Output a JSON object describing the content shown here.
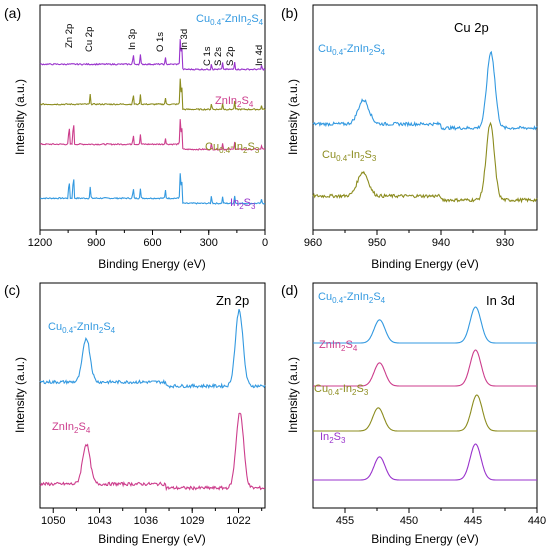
{
  "figure": {
    "panels": [
      {
        "id": "a",
        "panel_label": "(a)",
        "title": "",
        "xlabel": "Binding Energy (eV)",
        "ylabel": "Intensity (a.u.)",
        "x_ticks": [
          "1200",
          "900",
          "600",
          "300",
          "0"
        ],
        "series_labels": [
          {
            "parts": [
              [
                "Cu",
                ""
              ],
              [
                "0.4",
                "sub"
              ],
              [
                "-ZnIn",
                ""
              ],
              [
                "2",
                "sub"
              ],
              [
                "S",
                ""
              ],
              [
                "4",
                "sub"
              ]
            ]
          },
          {
            "parts": [
              [
                "ZnIn",
                ""
              ],
              [
                "2",
                "sub"
              ],
              [
                "S",
                ""
              ],
              [
                "4",
                "sub"
              ]
            ]
          },
          {
            "parts": [
              [
                "Cu",
                ""
              ],
              [
                "0.4",
                "sub"
              ],
              [
                "-In",
                ""
              ],
              [
                "2",
                "sub"
              ],
              [
                "S",
                ""
              ],
              [
                "3",
                "sub"
              ]
            ]
          },
          {
            "parts": [
              [
                "In",
                ""
              ],
              [
                "2",
                "sub"
              ],
              [
                "S",
                ""
              ],
              [
                "3",
                "sub"
              ]
            ]
          }
        ],
        "peak_labels": [
          "Zn 2p",
          "Cu 2p",
          "In 3p",
          "O 1s",
          "In 3d",
          "C 1s",
          "S 2s",
          "S 2p",
          "In 4d"
        ]
      },
      {
        "id": "b",
        "panel_label": "(b)",
        "title": "Cu 2p",
        "xlabel": "Binding Energy (eV)",
        "ylabel": "Intensity (a.u.)",
        "x_ticks": [
          "960",
          "950",
          "940",
          "930"
        ],
        "series_labels": [
          {
            "parts": [
              [
                "Cu",
                ""
              ],
              [
                "0.4",
                "sub"
              ],
              [
                "-ZnIn",
                ""
              ],
              [
                "2",
                "sub"
              ],
              [
                "S",
                ""
              ],
              [
                "4",
                "sub"
              ]
            ]
          },
          {
            "parts": [
              [
                "Cu",
                ""
              ],
              [
                "0.4",
                "sub"
              ],
              [
                "-In",
                ""
              ],
              [
                "2",
                "sub"
              ],
              [
                "S",
                ""
              ],
              [
                "3",
                "sub"
              ]
            ]
          }
        ]
      },
      {
        "id": "c",
        "panel_label": "(c)",
        "title": "Zn 2p",
        "xlabel": "Binding Energy (eV)",
        "ylabel": "Intensity (a.u.)",
        "x_ticks": [
          "1050",
          "1043",
          "1036",
          "1029",
          "1022"
        ],
        "series_labels": [
          {
            "parts": [
              [
                "Cu",
                ""
              ],
              [
                "0.4",
                "sub"
              ],
              [
                "-ZnIn",
                ""
              ],
              [
                "2",
                "sub"
              ],
              [
                "S",
                ""
              ],
              [
                "4",
                "sub"
              ]
            ]
          },
          {
            "parts": [
              [
                "ZnIn",
                ""
              ],
              [
                "2",
                "sub"
              ],
              [
                "S",
                ""
              ],
              [
                "4",
                "sub"
              ]
            ]
          }
        ]
      },
      {
        "id": "d",
        "panel_label": "(d)",
        "title": "In 3d",
        "xlabel": "Binding Energy (eV)",
        "ylabel": "Intensity (a.u.)",
        "x_ticks": [
          "455",
          "450",
          "445",
          "440"
        ],
        "series_labels": [
          {
            "parts": [
              [
                "Cu",
                ""
              ],
              [
                "0.4",
                "sub"
              ],
              [
                "-ZnIn",
                ""
              ],
              [
                "2",
                "sub"
              ],
              [
                "S",
                ""
              ],
              [
                "4",
                "sub"
              ]
            ]
          },
          {
            "parts": [
              [
                "ZnIn",
                ""
              ],
              [
                "2",
                "sub"
              ],
              [
                "S",
                ""
              ],
              [
                "4",
                "sub"
              ]
            ]
          },
          {
            "parts": [
              [
                "Cu",
                ""
              ],
              [
                "0.4",
                "sub"
              ],
              [
                "-In",
                ""
              ],
              [
                "2",
                "sub"
              ],
              [
                "S",
                ""
              ],
              [
                "3",
                "sub"
              ]
            ]
          },
          {
            "parts": [
              [
                "In",
                ""
              ],
              [
                "2",
                "sub"
              ],
              [
                "S",
                ""
              ],
              [
                "3",
                "sub"
              ]
            ]
          }
        ]
      }
    ]
  },
  "colors": {
    "cu_znins": "#3399e0",
    "znins": "#cc3d8c",
    "cu_ins": "#8c8c1f",
    "ins": "#9933cc",
    "axis": "#000000",
    "label_a_c": "#1a1a1a"
  },
  "chart_data": [
    {
      "type": "line",
      "panel": "a",
      "title": "",
      "xlabel": "Binding Energy (eV)",
      "ylabel": "Intensity (a.u.)",
      "xlim": [
        1200,
        0
      ],
      "x_reversed": true,
      "y_ticks_shown": false,
      "grid": false,
      "series": [
        {
          "name": "Cu0.4-ZnIn2S4",
          "color": "#3399e0",
          "offset": 3.0,
          "peaks": [
            [
              1045,
              0.7
            ],
            [
              1022,
              0.9
            ],
            [
              932,
              0.35
            ],
            [
              703,
              0.35
            ],
            [
              665,
              0.3
            ],
            [
              531,
              0.25
            ],
            [
              445,
              1.0
            ],
            [
              452,
              0.8
            ],
            [
              285,
              0.25
            ],
            [
              226,
              0.2
            ],
            [
              162,
              0.25
            ],
            [
              18,
              0.12
            ]
          ]
        },
        {
          "name": "ZnIn2S4",
          "color": "#cc3d8c",
          "offset": 2.0,
          "peaks": [
            [
              1045,
              0.7
            ],
            [
              1022,
              0.9
            ],
            [
              703,
              0.35
            ],
            [
              665,
              0.3
            ],
            [
              531,
              0.2
            ],
            [
              445,
              1.0
            ],
            [
              452,
              0.8
            ],
            [
              285,
              0.2
            ],
            [
              226,
              0.2
            ],
            [
              162,
              0.25
            ],
            [
              18,
              0.12
            ]
          ]
        },
        {
          "name": "Cu0.4-In2S3",
          "color": "#8c8c1f",
          "offset": 1.0,
          "peaks": [
            [
              932,
              0.3
            ],
            [
              703,
              0.35
            ],
            [
              665,
              0.3
            ],
            [
              531,
              0.2
            ],
            [
              445,
              1.0
            ],
            [
              452,
              0.8
            ],
            [
              285,
              0.2
            ],
            [
              226,
              0.2
            ],
            [
              162,
              0.25
            ],
            [
              18,
              0.12
            ]
          ]
        },
        {
          "name": "In2S3",
          "color": "#9933cc",
          "offset": 0.0,
          "peaks": [
            [
              703,
              0.35
            ],
            [
              665,
              0.3
            ],
            [
              531,
              0.2
            ],
            [
              445,
              1.0
            ],
            [
              452,
              0.8
            ],
            [
              285,
              0.2
            ],
            [
              226,
              0.2
            ],
            [
              162,
              0.25
            ],
            [
              18,
              0.12
            ]
          ]
        }
      ]
    },
    {
      "type": "line",
      "panel": "b",
      "title": "Cu 2p",
      "xlabel": "Binding Energy (eV)",
      "ylabel": "Intensity (a.u.)",
      "xlim": [
        960,
        925
      ],
      "x_reversed": true,
      "grid": false,
      "series": [
        {
          "name": "Cu0.4-ZnIn2S4",
          "color": "#3399e0",
          "offset": 1.0,
          "peaks": [
            [
              952.1,
              0.3,
              1.2
            ],
            [
              932.2,
              0.95,
              0.9
            ]
          ]
        },
        {
          "name": "Cu0.4-In2S3",
          "color": "#8c8c1f",
          "offset": 0.0,
          "peaks": [
            [
              952.2,
              0.3,
              1.2
            ],
            [
              932.3,
              0.95,
              0.9
            ]
          ]
        }
      ]
    },
    {
      "type": "line",
      "panel": "c",
      "title": "Zn 2p",
      "xlabel": "Binding Energy (eV)",
      "ylabel": "Intensity (a.u.)",
      "xlim": [
        1052,
        1018
      ],
      "x_reversed": true,
      "grid": false,
      "series": [
        {
          "name": "Cu0.4-ZnIn2S4",
          "color": "#3399e0",
          "offset": 1.0,
          "peaks": [
            [
              1045.0,
              0.55,
              0.8
            ],
            [
              1021.9,
              0.95,
              0.8
            ]
          ]
        },
        {
          "name": "ZnIn2S4",
          "color": "#cc3d8c",
          "offset": 0.0,
          "peaks": [
            [
              1045.0,
              0.5,
              0.8
            ],
            [
              1021.8,
              0.95,
              0.8
            ]
          ]
        }
      ]
    },
    {
      "type": "line",
      "panel": "d",
      "title": "In 3d",
      "xlabel": "Binding Energy (eV)",
      "ylabel": "Intensity (a.u.)",
      "xlim": [
        457.5,
        440
      ],
      "x_reversed": true,
      "grid": false,
      "series": [
        {
          "name": "Cu0.4-ZnIn2S4",
          "color": "#3399e0",
          "offset": 3.0,
          "peaks": [
            [
              452.3,
              0.58,
              0.6
            ],
            [
              444.8,
              0.9,
              0.6
            ]
          ]
        },
        {
          "name": "ZnIn2S4",
          "color": "#cc3d8c",
          "offset": 2.0,
          "peaks": [
            [
              452.3,
              0.58,
              0.6
            ],
            [
              444.8,
              0.9,
              0.6
            ]
          ]
        },
        {
          "name": "Cu0.4-In2S3",
          "color": "#8c8c1f",
          "offset": 1.0,
          "peaks": [
            [
              452.4,
              0.58,
              0.6
            ],
            [
              444.7,
              0.9,
              0.6
            ]
          ]
        },
        {
          "name": "In2S3",
          "color": "#9933cc",
          "offset": 0.0,
          "peaks": [
            [
              452.3,
              0.58,
              0.6
            ],
            [
              444.8,
              0.9,
              0.6
            ]
          ]
        }
      ]
    }
  ]
}
